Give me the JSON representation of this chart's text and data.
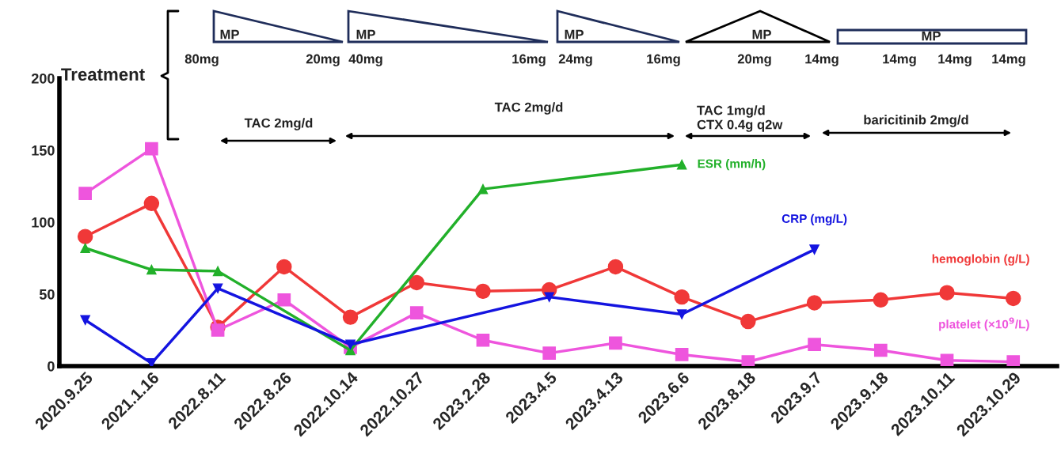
{
  "chart_data": {
    "type": "line",
    "categories": [
      "2020.9.25",
      "2021.1.16",
      "2022.8.11",
      "2022.8.26",
      "2022.10.14",
      "2022.10.27",
      "2023.2.28",
      "2023.4.5",
      "2023.4.13",
      "2023.6.6",
      "2023.8.18",
      "2023.9.7",
      "2023.9.18",
      "2023.10.11",
      "2023.10.29"
    ],
    "series": [
      {
        "name": "hemoglobin (g/L)",
        "color": "#f03838",
        "marker": "circle",
        "values": [
          90,
          113,
          27,
          69,
          34,
          58,
          52,
          53,
          69,
          48,
          31,
          44,
          46,
          51,
          47
        ]
      },
      {
        "name": "platelet (×10$^{9}$/L)",
        "color": "#ee55dd",
        "marker": "square",
        "values": [
          120,
          151,
          25,
          46,
          13,
          37,
          18,
          9,
          16,
          8,
          3,
          15,
          11,
          4,
          3
        ]
      },
      {
        "name": "ESR (mm/h)",
        "color": "#22b02a",
        "marker": "triangle",
        "values": [
          82,
          67,
          66,
          null,
          11,
          null,
          123,
          null,
          null,
          140,
          null,
          null,
          null,
          null,
          null
        ]
      },
      {
        "name": "CRP (mg/L)",
        "color": "#1414e0",
        "marker": "triangle_down",
        "values": [
          32,
          2,
          54,
          null,
          15,
          null,
          null,
          48,
          null,
          36,
          null,
          81,
          null,
          null,
          null
        ]
      }
    ],
    "ylim": [
      0,
      200
    ],
    "yticks": [
      0,
      50,
      100,
      150,
      200
    ],
    "grid": false,
    "legend": false,
    "annotations": [
      "Treatment",
      "MP",
      "80mg",
      "20mg",
      "MP",
      "40mg",
      "16mg",
      "MP",
      "24mg",
      "16mg",
      "MP",
      "20mg",
      "14mg",
      "MP",
      "14mg",
      "14mg",
      "14mg",
      "TAC 2mg/d",
      "TAC 2mg/d",
      "TAC 1mg/d\nCTX 0.4g q2w",
      "baricitinib 2mg/d"
    ]
  }
}
